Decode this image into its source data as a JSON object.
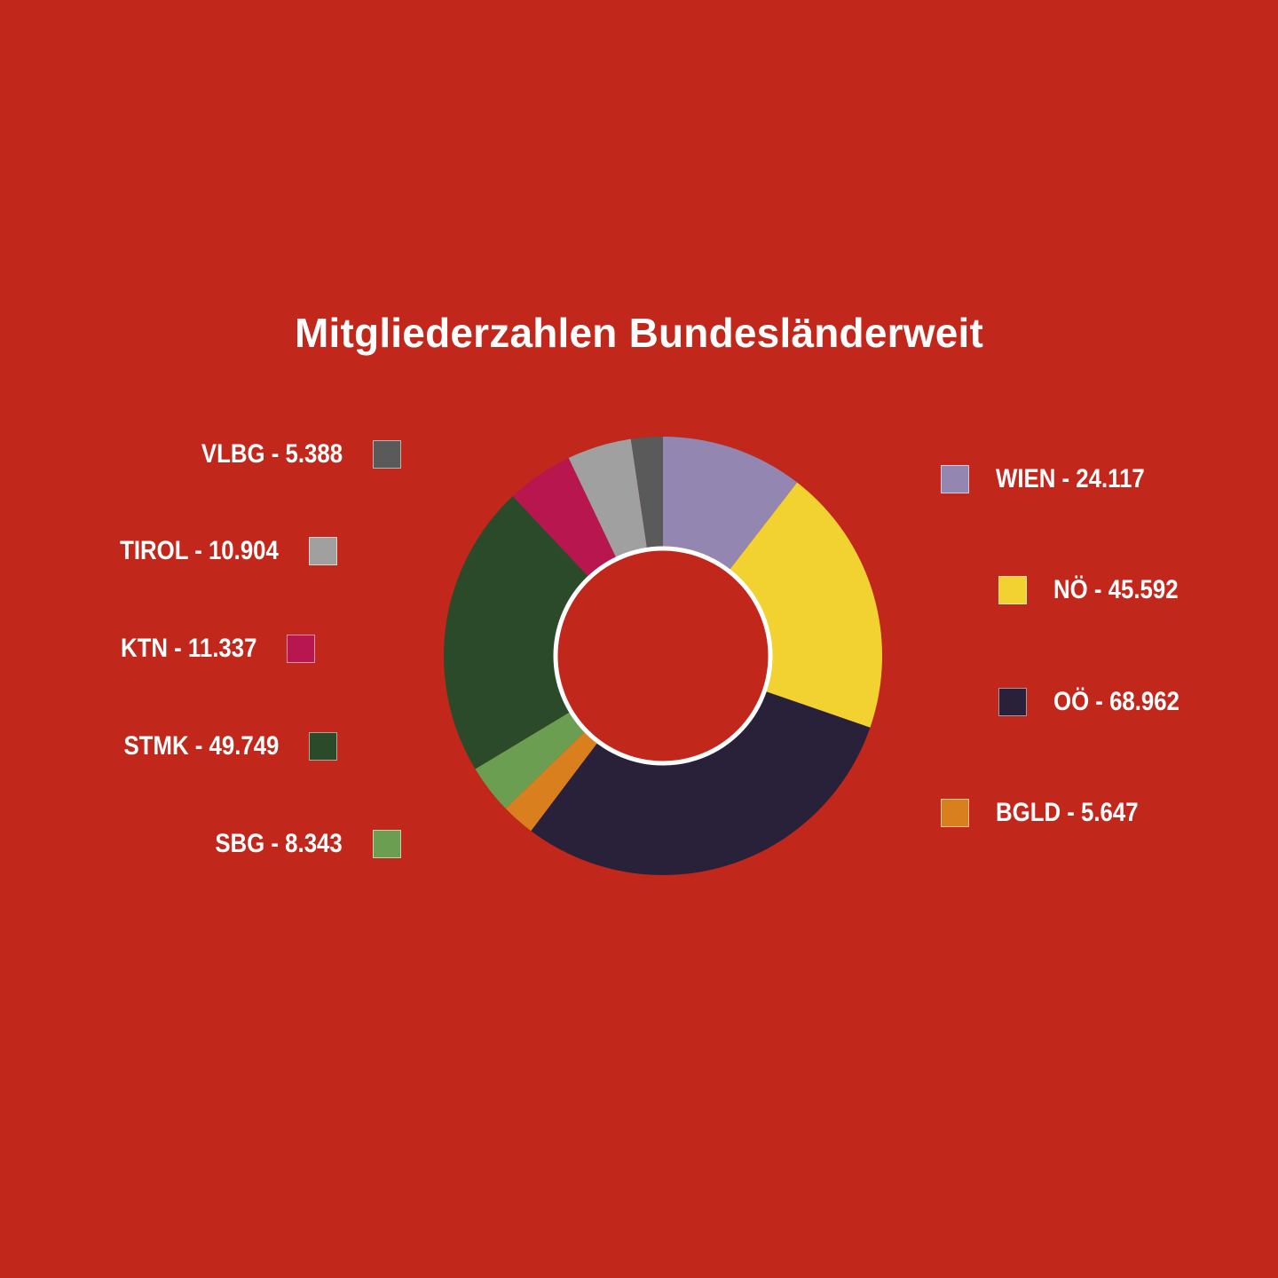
{
  "title": "Mitgliederzahlen Bundesländerweit",
  "chart_data": {
    "type": "pie",
    "variant": "donut",
    "title": "Mitgliederzahlen Bundesländerweit",
    "start": "12 o'clock",
    "direction": "clockwise",
    "slices": [
      {
        "key": "wien",
        "label": "WIEN - 24.117",
        "name": "WIEN",
        "value": 24117,
        "color": "#9387b1"
      },
      {
        "key": "noe",
        "label": "NÖ - 45.592",
        "name": "NÖ",
        "value": 45592,
        "color": "#f2d230"
      },
      {
        "key": "ooe",
        "label": "OÖ - 68.962",
        "name": "OÖ",
        "value": 68962,
        "color": "#29213a"
      },
      {
        "key": "bgld",
        "label": "BGLD - 5.647",
        "name": "BGLD",
        "value": 5647,
        "color": "#d97f1e"
      },
      {
        "key": "sbg",
        "label": "SBG - 8.343",
        "name": "SBG",
        "value": 8343,
        "color": "#6b9e50"
      },
      {
        "key": "stmk",
        "label": "STMK - 49.749",
        "name": "STMK",
        "value": 49749,
        "color": "#2b4a2a"
      },
      {
        "key": "ktn",
        "label": "KTN - 11.337",
        "name": "KTN",
        "value": 11337,
        "color": "#b8164f"
      },
      {
        "key": "tirol",
        "label": "TIROL - 10.904",
        "name": "TIROL",
        "value": 10904,
        "color": "#a0a0a0"
      },
      {
        "key": "vlbg",
        "label": "VLBG - 5.388",
        "name": "VLBG",
        "value": 5388,
        "color": "#5a5a5a"
      }
    ]
  },
  "colors": {
    "background": "#c1271b",
    "text": "#ffffff",
    "inner_ring": "#ffffff"
  }
}
